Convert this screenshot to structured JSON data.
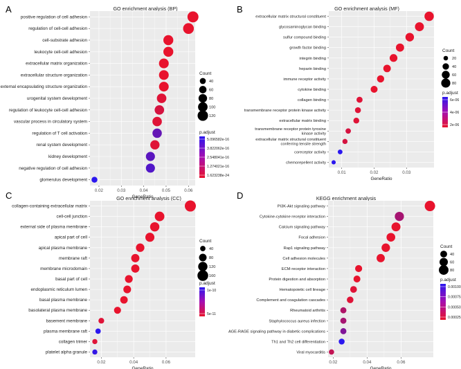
{
  "chart_data": [
    {
      "panel_label": "A",
      "type": "scatter",
      "title": "GO enrichment analysis (BP)",
      "xlabel": "GeneRatio",
      "ylabel": "",
      "xlim": [
        0.016,
        0.063
      ],
      "xticks": [
        0.02,
        0.03,
        0.04,
        0.05,
        0.06
      ],
      "xtick_labels": [
        "0.02",
        "0.03",
        "0.04",
        "0.05",
        "0.06"
      ],
      "grid": true,
      "size_legend": {
        "title": "Count",
        "values": [
          40,
          60,
          80,
          100,
          120
        ],
        "labels": [
          "40",
          "60",
          "80",
          "100",
          "120"
        ],
        "max": 135
      },
      "color_legend": {
        "title": "p.adjust",
        "labels": [
          "5.096582e-16",
          "3.822062e-16",
          "2.548041e-16",
          "1.274021e-16",
          "1.623238e-24"
        ]
      },
      "categories": [
        "positive regulation of cell adhesion",
        "regulation of cell-cell adhesion",
        "cell-substrate adhesion",
        "leukocyte cell-cell adhesion",
        "extracellular matrix organization",
        "extracellular structure organization",
        "external encapsulating structure organization",
        "urogenital system development",
        "regulation of leukocyte cell-cell adhesion",
        "vascular process in circulatory system",
        "regulation of T cell activation",
        "renal system development",
        "kidney development",
        "negative regulation of cell adhesion",
        "glomerulus development"
      ],
      "gene_ratio": [
        0.062,
        0.06,
        0.051,
        0.051,
        0.049,
        0.049,
        0.049,
        0.048,
        0.047,
        0.046,
        0.046,
        0.045,
        0.043,
        0.043,
        0.018
      ],
      "count": [
        133,
        128,
        109,
        109,
        105,
        104,
        104,
        100,
        99,
        98,
        97,
        95,
        91,
        91,
        38
      ],
      "color_t": [
        0.0,
        0.0,
        0.0,
        0.0,
        0.0,
        0.0,
        0.0,
        0.05,
        0.1,
        0.05,
        0.7,
        0.05,
        0.75,
        0.8,
        1.0
      ]
    },
    {
      "panel_label": "B",
      "type": "scatter",
      "title": "GO enrichment analysis (MF)",
      "xlabel": "GeneRatio",
      "ylabel": "",
      "xlim": [
        0.006,
        0.0385
      ],
      "xticks": [
        0.01,
        0.02,
        0.03
      ],
      "xtick_labels": [
        "0.01",
        "0.02",
        "0.03"
      ],
      "grid": true,
      "size_legend": {
        "title": "Count",
        "values": [
          20,
          40,
          60,
          80
        ],
        "labels": [
          "20",
          "40",
          "60",
          "80"
        ],
        "max": 85
      },
      "color_legend": {
        "title": "p.adjust",
        "labels": [
          "6e-06",
          "4e-06",
          "2e-06"
        ]
      },
      "categories": [
        "extracellular matrix structural constituent",
        "glycosaminoglycan binding",
        "sulfur compound binding",
        "growth factor binding",
        "integrin binding",
        "heparin binding",
        "immune receptor activity",
        "cytokine binding",
        "collagen binding",
        "transmembrane receptor protein kinase activity",
        "extracellular matrix binding",
        "transmembrane receptor protein tyrosine\nkinase activity",
        "extracellular matrix structural constituent\nconferring tensile strength",
        "coreceptor activity",
        "chemorepellent activity"
      ],
      "gene_ratio": [
        0.037,
        0.034,
        0.031,
        0.028,
        0.026,
        0.024,
        0.022,
        0.02,
        0.0155,
        0.015,
        0.0145,
        0.012,
        0.011,
        0.0095,
        0.0075
      ],
      "count": [
        84,
        77,
        70,
        64,
        58,
        54,
        50,
        46,
        35,
        34,
        33,
        28,
        25,
        22,
        17
      ],
      "color_t": [
        0.0,
        0.0,
        0.0,
        0.0,
        0.0,
        0.0,
        0.0,
        0.0,
        0.05,
        0.05,
        0.05,
        0.1,
        0.1,
        1.0,
        1.0
      ]
    },
    {
      "panel_label": "C",
      "type": "scatter",
      "title": "GO enrichment analysis (CC)",
      "xlabel": "GeneRatio",
      "ylabel": "",
      "xlim": [
        0.013,
        0.078
      ],
      "xticks": [
        0.02,
        0.04,
        0.06
      ],
      "xtick_labels": [
        "0.02",
        "0.04",
        "0.06"
      ],
      "grid": true,
      "size_legend": {
        "title": "Count",
        "values": [
          40,
          80,
          120,
          160
        ],
        "labels": [
          "40",
          "80",
          "120",
          "160"
        ],
        "max": 170
      },
      "color_legend": {
        "title": "p.adjust",
        "labels": [
          "1e-10",
          "5e-11"
        ]
      },
      "categories": [
        "collagen-containing extracellular matrix",
        "cell-cell junction",
        "external side of plasma membrane",
        "apical part of cell",
        "apical plasma membrane",
        "membrane raft",
        "membrane microdomain",
        "basal part of cell",
        "endoplasmic reticulum lumen",
        "basal plasma membrane",
        "basolateral plasma membrane",
        "basement membrane",
        "plasma membrane raft",
        "collagen trimer",
        "platelet alpha granule"
      ],
      "gene_ratio": [
        0.075,
        0.056,
        0.053,
        0.05,
        0.044,
        0.041,
        0.041,
        0.037,
        0.036,
        0.034,
        0.03,
        0.02,
        0.018,
        0.016,
        0.016
      ],
      "count": [
        170,
        128,
        120,
        114,
        100,
        94,
        94,
        84,
        82,
        78,
        68,
        46,
        40,
        36,
        36
      ],
      "color_t": [
        0.0,
        0.0,
        0.0,
        0.0,
        0.0,
        0.0,
        0.0,
        0.0,
        0.0,
        0.0,
        0.0,
        0.05,
        1.0,
        0.05,
        0.95
      ]
    },
    {
      "panel_label": "D",
      "type": "scatter",
      "title": "KEGG enrichment analysis",
      "xlabel": "GeneRatio",
      "ylabel": "",
      "xlim": [
        0.017,
        0.079
      ],
      "xticks": [
        0.02,
        0.04,
        0.06
      ],
      "xtick_labels": [
        "0.02",
        "0.04",
        "0.06"
      ],
      "grid": true,
      "size_legend": {
        "title": "Count",
        "values": [
          40,
          60,
          80
        ],
        "labels": [
          "40",
          "60",
          "80"
        ],
        "max": 95
      },
      "color_legend": {
        "title": "p.adjust",
        "labels": [
          "0.00100",
          "0.00075",
          "0.00050",
          "0.00025"
        ]
      },
      "categories": [
        "PI3K-Akt signaling pathway",
        "Cytokine-cytokine receptor interaction",
        "Calcium signaling pathway",
        "Focal adhesion",
        "Rap1 signaling pathway",
        "Cell adhesion molecules",
        "ECM-receptor interaction",
        "Protein digestion and absorption",
        "Hematopoietic cell lineage",
        "Complement and coagulation cascades",
        "Rheumatoid arthritis",
        "Staphylococcus aureus infection",
        "AGE-RAGE signaling pathway in diabetic complications",
        "Th1 and Th2 cell differentiation",
        "Viral myocarditis"
      ],
      "gene_ratio": [
        0.077,
        0.059,
        0.057,
        0.054,
        0.051,
        0.048,
        0.035,
        0.034,
        0.032,
        0.03,
        0.026,
        0.026,
        0.026,
        0.025,
        0.019
      ],
      "count": [
        93,
        72,
        69,
        65,
        62,
        58,
        43,
        41,
        39,
        37,
        32,
        32,
        32,
        30,
        24
      ],
      "color_t": [
        0.0,
        0.35,
        0.0,
        0.0,
        0.0,
        0.0,
        0.0,
        0.0,
        0.05,
        0.05,
        0.3,
        0.35,
        0.55,
        1.0,
        0.2
      ]
    }
  ],
  "colors": {
    "low_padj": "#e8132d",
    "high_padj": "#2b17ef",
    "panel_background": "#ebebeb",
    "grid": "#ffffff"
  }
}
